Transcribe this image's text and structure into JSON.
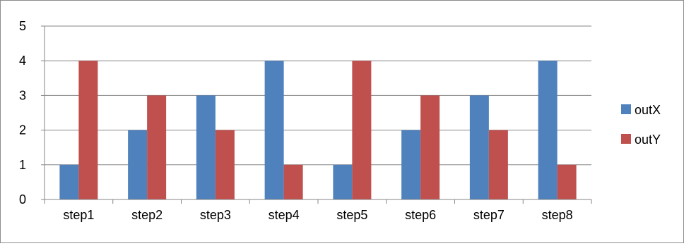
{
  "chart_data": {
    "type": "bar",
    "title": "",
    "xlabel": "",
    "ylabel": "",
    "categories": [
      "step1",
      "step2",
      "step3",
      "step4",
      "step5",
      "step6",
      "step7",
      "step8"
    ],
    "series": [
      {
        "name": "outX",
        "color": "#4f81bd",
        "values": [
          1,
          2,
          3,
          4,
          1,
          2,
          3,
          4
        ]
      },
      {
        "name": "outY",
        "color": "#c0504d",
        "values": [
          4,
          3,
          2,
          1,
          4,
          3,
          2,
          1
        ]
      }
    ],
    "ylim": [
      0,
      5
    ],
    "yticks": [
      "0",
      "1",
      "2",
      "3",
      "4",
      "5"
    ],
    "grid": true,
    "legend": "right"
  }
}
